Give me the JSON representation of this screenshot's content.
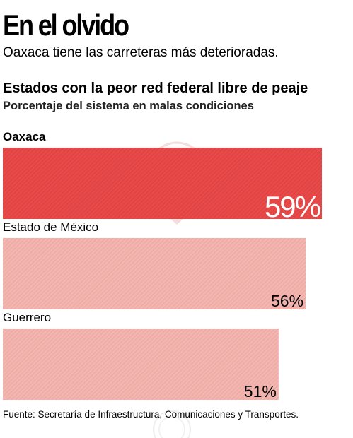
{
  "headline": "En el olvido",
  "deck": "Oaxaca tiene las carreteras más deterioradas.",
  "source": "Fuente: Secretaría de Infraestructura, Comunicaciones y Transportes.",
  "colors": {
    "highlight": "#e84a4a",
    "others": "#f3b5b0"
  },
  "chart_data": {
    "type": "bar",
    "orientation": "horizontal",
    "title": "Estados con la peor red federal libre de peaje",
    "subtitle": "Porcentaje del sistema en malas condiciones",
    "categories": [
      "Oaxaca",
      "Estado de México",
      "Guerrero"
    ],
    "values": [
      59,
      56,
      51
    ],
    "value_labels": [
      "59%",
      "56%",
      "51%"
    ],
    "unit": "%",
    "xlim": [
      0,
      59
    ],
    "grid": false,
    "legend": "none"
  }
}
